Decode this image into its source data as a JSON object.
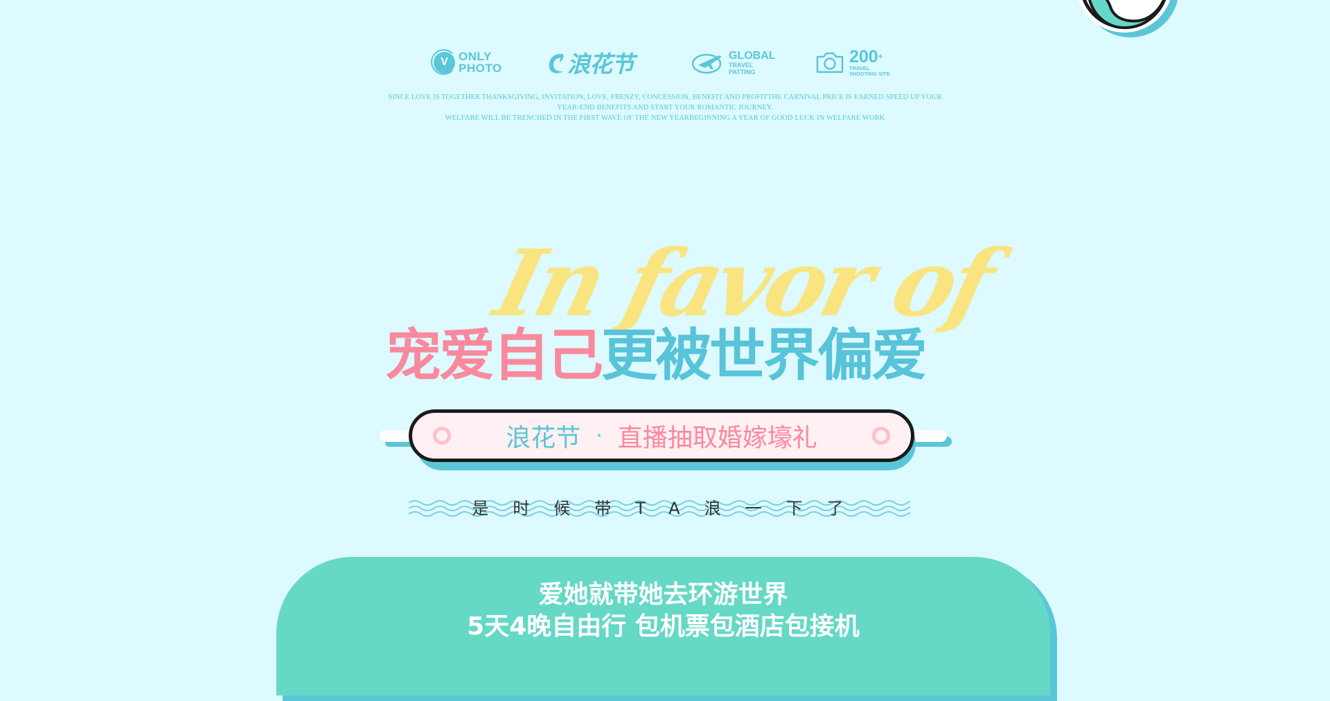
{
  "colors": {
    "background": "#dcfaff",
    "accent_blue": "#5bc6d8",
    "accent_pink": "#f9899d",
    "script_yellow": "#fbe37a",
    "card_green": "#65d8c6"
  },
  "logos": {
    "only_photo": {
      "badge": "V",
      "line1": "ONLY",
      "line2": "PHOTO"
    },
    "wave_festival": {
      "text": "浪花节"
    },
    "global": {
      "title": "GLOBAL",
      "line1": "TRAVEL",
      "line2": "PATTING"
    },
    "camera": {
      "number": "200",
      "sup": "+",
      "line1": "TRAVEL",
      "line2": "SHOOTING SITE"
    }
  },
  "intro": {
    "line1": "since love is together thanksgiving, invitation, love, frenzy, concession, benefit and profitthe carnival price is earned speed up your",
    "line2": "year-end benefits and start your romantic journey.",
    "line3": "welfare will be trenched in the first wave of the new yearbeginning a year of good luck in welfare work"
  },
  "script_heading": "In favor of",
  "headline": {
    "pink_part": "宠爱自己",
    "blue_part": "更被世界偏爱"
  },
  "banner": {
    "left": "浪花节",
    "separator": "·",
    "right": "直播抽取婚嫁壕礼"
  },
  "subtitle": "是时候带TA浪一下了",
  "card": {
    "line1": "爱她就带她去环游世界",
    "line2": "5天4晚自由行 包机票包酒店包接机"
  }
}
